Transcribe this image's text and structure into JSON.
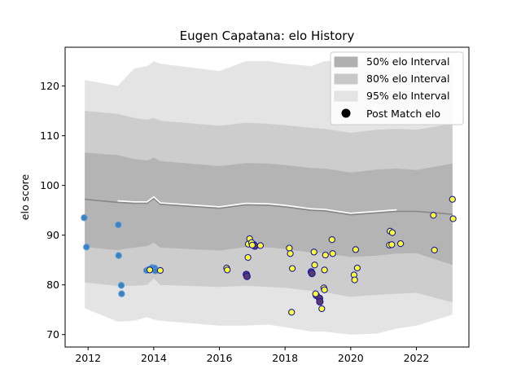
{
  "chart_data": {
    "type": "scatter",
    "title": "Eugen Capatana: elo History",
    "xlabel": "",
    "ylabel": "elo score",
    "xlim": [
      2011.3,
      2023.6
    ],
    "ylim": [
      67.5,
      127.8
    ],
    "x_ticks": [
      2012,
      2014,
      2016,
      2018,
      2020,
      2022
    ],
    "y_ticks": [
      70,
      80,
      90,
      100,
      110,
      120
    ],
    "grid": false,
    "legend_placement": "top-right",
    "legend": [
      {
        "label": "50% elo Interval",
        "color": "#b0b0b0"
      },
      {
        "label": "80% elo Interval",
        "color": "#c8c8c8"
      },
      {
        "label": "95% elo Interval",
        "color": "#e4e4e4"
      },
      {
        "label": "Post Match elo",
        "color": "#000000"
      }
    ],
    "band_x": [
      2011.9,
      2012.9,
      2013.4,
      2013.8,
      2014.0,
      2014.2,
      2016.0,
      2016.8,
      2017.5,
      2018.0,
      2018.8,
      2019.2,
      2020.0,
      2020.8,
      2021.4,
      2022.0,
      2023.1
    ],
    "mean_line": [
      97.2,
      96.6,
      96.4,
      96.4,
      97.4,
      96.2,
      95.4,
      96.1,
      96.0,
      95.7,
      95.0,
      94.9,
      94.1,
      94.5,
      94.8,
      94.8,
      94.2
    ],
    "band_50": {
      "upper": [
        106.6,
        106.1,
        105.3,
        105.0,
        105.6,
        104.9,
        103.9,
        104.5,
        104.4,
        104.1,
        103.5,
        103.4,
        102.6,
        103.2,
        103.4,
        103.1,
        104.4
      ],
      "lower": [
        87.6,
        87.0,
        87.5,
        87.8,
        88.5,
        87.5,
        86.9,
        87.6,
        87.5,
        87.2,
        86.5,
        86.4,
        85.6,
        85.9,
        86.3,
        86.4,
        84.0
      ]
    },
    "band_80": {
      "upper": [
        115.0,
        114.4,
        113.6,
        113.2,
        113.6,
        113.0,
        112.0,
        112.6,
        112.4,
        112.1,
        111.6,
        111.4,
        110.6,
        111.2,
        111.4,
        111.2,
        112.4
      ],
      "lower": [
        80.5,
        79.8,
        79.8,
        80.0,
        81.3,
        80.0,
        79.6,
        79.8,
        79.6,
        79.4,
        78.8,
        78.5,
        77.6,
        78.0,
        78.2,
        78.4,
        76.5
      ]
    },
    "band_95": {
      "upper": [
        121.2,
        120.0,
        123.5,
        124.0,
        125.0,
        124.5,
        123.0,
        125.0,
        125.0,
        124.5,
        124.0,
        125.0,
        125.0,
        125.0,
        125.0,
        125.0,
        125.0
      ],
      "lower": [
        75.3,
        72.6,
        72.8,
        73.5,
        73.0,
        72.8,
        71.8,
        71.8,
        72.0,
        71.5,
        70.6,
        70.6,
        70.0,
        70.2,
        71.2,
        71.8,
        74.0
      ]
    },
    "series": [
      {
        "style": "blue",
        "points": [
          {
            "x": 2011.88,
            "y": 93.5
          },
          {
            "x": 2011.95,
            "y": 87.6
          },
          {
            "x": 2012.92,
            "y": 92.1
          },
          {
            "x": 2012.93,
            "y": 85.9
          },
          {
            "x": 2013.01,
            "y": 79.9
          },
          {
            "x": 2013.02,
            "y": 78.2
          },
          {
            "x": 2013.78,
            "y": 82.9
          },
          {
            "x": 2013.85,
            "y": 83.1
          },
          {
            "x": 2013.95,
            "y": 83.5
          },
          {
            "x": 2014.03,
            "y": 83.4
          },
          {
            "x": 2014.05,
            "y": 82.8
          }
        ]
      },
      {
        "style": "purple",
        "points": [
          {
            "x": 2016.82,
            "y": 82.1
          },
          {
            "x": 2016.84,
            "y": 81.7
          },
          {
            "x": 2017.04,
            "y": 88.1
          },
          {
            "x": 2017.08,
            "y": 87.8
          },
          {
            "x": 2018.8,
            "y": 82.6
          },
          {
            "x": 2018.82,
            "y": 82.3
          },
          {
            "x": 2018.95,
            "y": 77.9
          },
          {
            "x": 2019.05,
            "y": 77.3
          },
          {
            "x": 2019.06,
            "y": 76.6
          }
        ]
      },
      {
        "style": "yellow",
        "points": [
          {
            "x": 2013.88,
            "y": 83.0
          },
          {
            "x": 2014.2,
            "y": 82.9
          },
          {
            "x": 2016.22,
            "y": 83.4
          },
          {
            "x": 2016.24,
            "y": 83.0
          },
          {
            "x": 2016.87,
            "y": 85.5
          },
          {
            "x": 2016.92,
            "y": 89.3
          },
          {
            "x": 2016.88,
            "y": 88.2
          },
          {
            "x": 2016.98,
            "y": 88.5
          },
          {
            "x": 2017.0,
            "y": 88.0
          },
          {
            "x": 2017.25,
            "y": 87.9
          },
          {
            "x": 2018.13,
            "y": 87.4
          },
          {
            "x": 2018.16,
            "y": 86.3
          },
          {
            "x": 2018.2,
            "y": 74.5
          },
          {
            "x": 2018.22,
            "y": 83.3
          },
          {
            "x": 2018.88,
            "y": 86.6
          },
          {
            "x": 2018.9,
            "y": 84.0
          },
          {
            "x": 2018.93,
            "y": 78.2
          },
          {
            "x": 2019.12,
            "y": 75.2
          },
          {
            "x": 2019.18,
            "y": 79.4
          },
          {
            "x": 2019.2,
            "y": 79.0
          },
          {
            "x": 2019.2,
            "y": 83.0
          },
          {
            "x": 2019.23,
            "y": 86.0
          },
          {
            "x": 2019.43,
            "y": 89.1
          },
          {
            "x": 2019.45,
            "y": 86.3
          },
          {
            "x": 2020.1,
            "y": 82.0
          },
          {
            "x": 2020.12,
            "y": 81.0
          },
          {
            "x": 2020.15,
            "y": 87.1
          },
          {
            "x": 2020.2,
            "y": 83.4
          },
          {
            "x": 2021.18,
            "y": 88.0
          },
          {
            "x": 2021.2,
            "y": 90.8
          },
          {
            "x": 2021.25,
            "y": 88.1
          },
          {
            "x": 2021.27,
            "y": 90.5
          },
          {
            "x": 2021.52,
            "y": 88.3
          },
          {
            "x": 2022.52,
            "y": 94.0
          },
          {
            "x": 2022.55,
            "y": 87.0
          },
          {
            "x": 2023.1,
            "y": 97.2
          },
          {
            "x": 2023.12,
            "y": 93.3
          }
        ]
      }
    ],
    "colors": {
      "band_50": "#b4b4b4",
      "band_80": "#cdcdcd",
      "band_95": "#e4e4e4",
      "mean_line": "#888888",
      "overlay_line": "#ffffff",
      "blue_fill": "#3a82c4",
      "blue_edge": "#5b9bd5",
      "purple_fill": "#5a3a6a",
      "yellow_fill": "#ffff33",
      "dark_edge": "#1a1aa0"
    }
  }
}
